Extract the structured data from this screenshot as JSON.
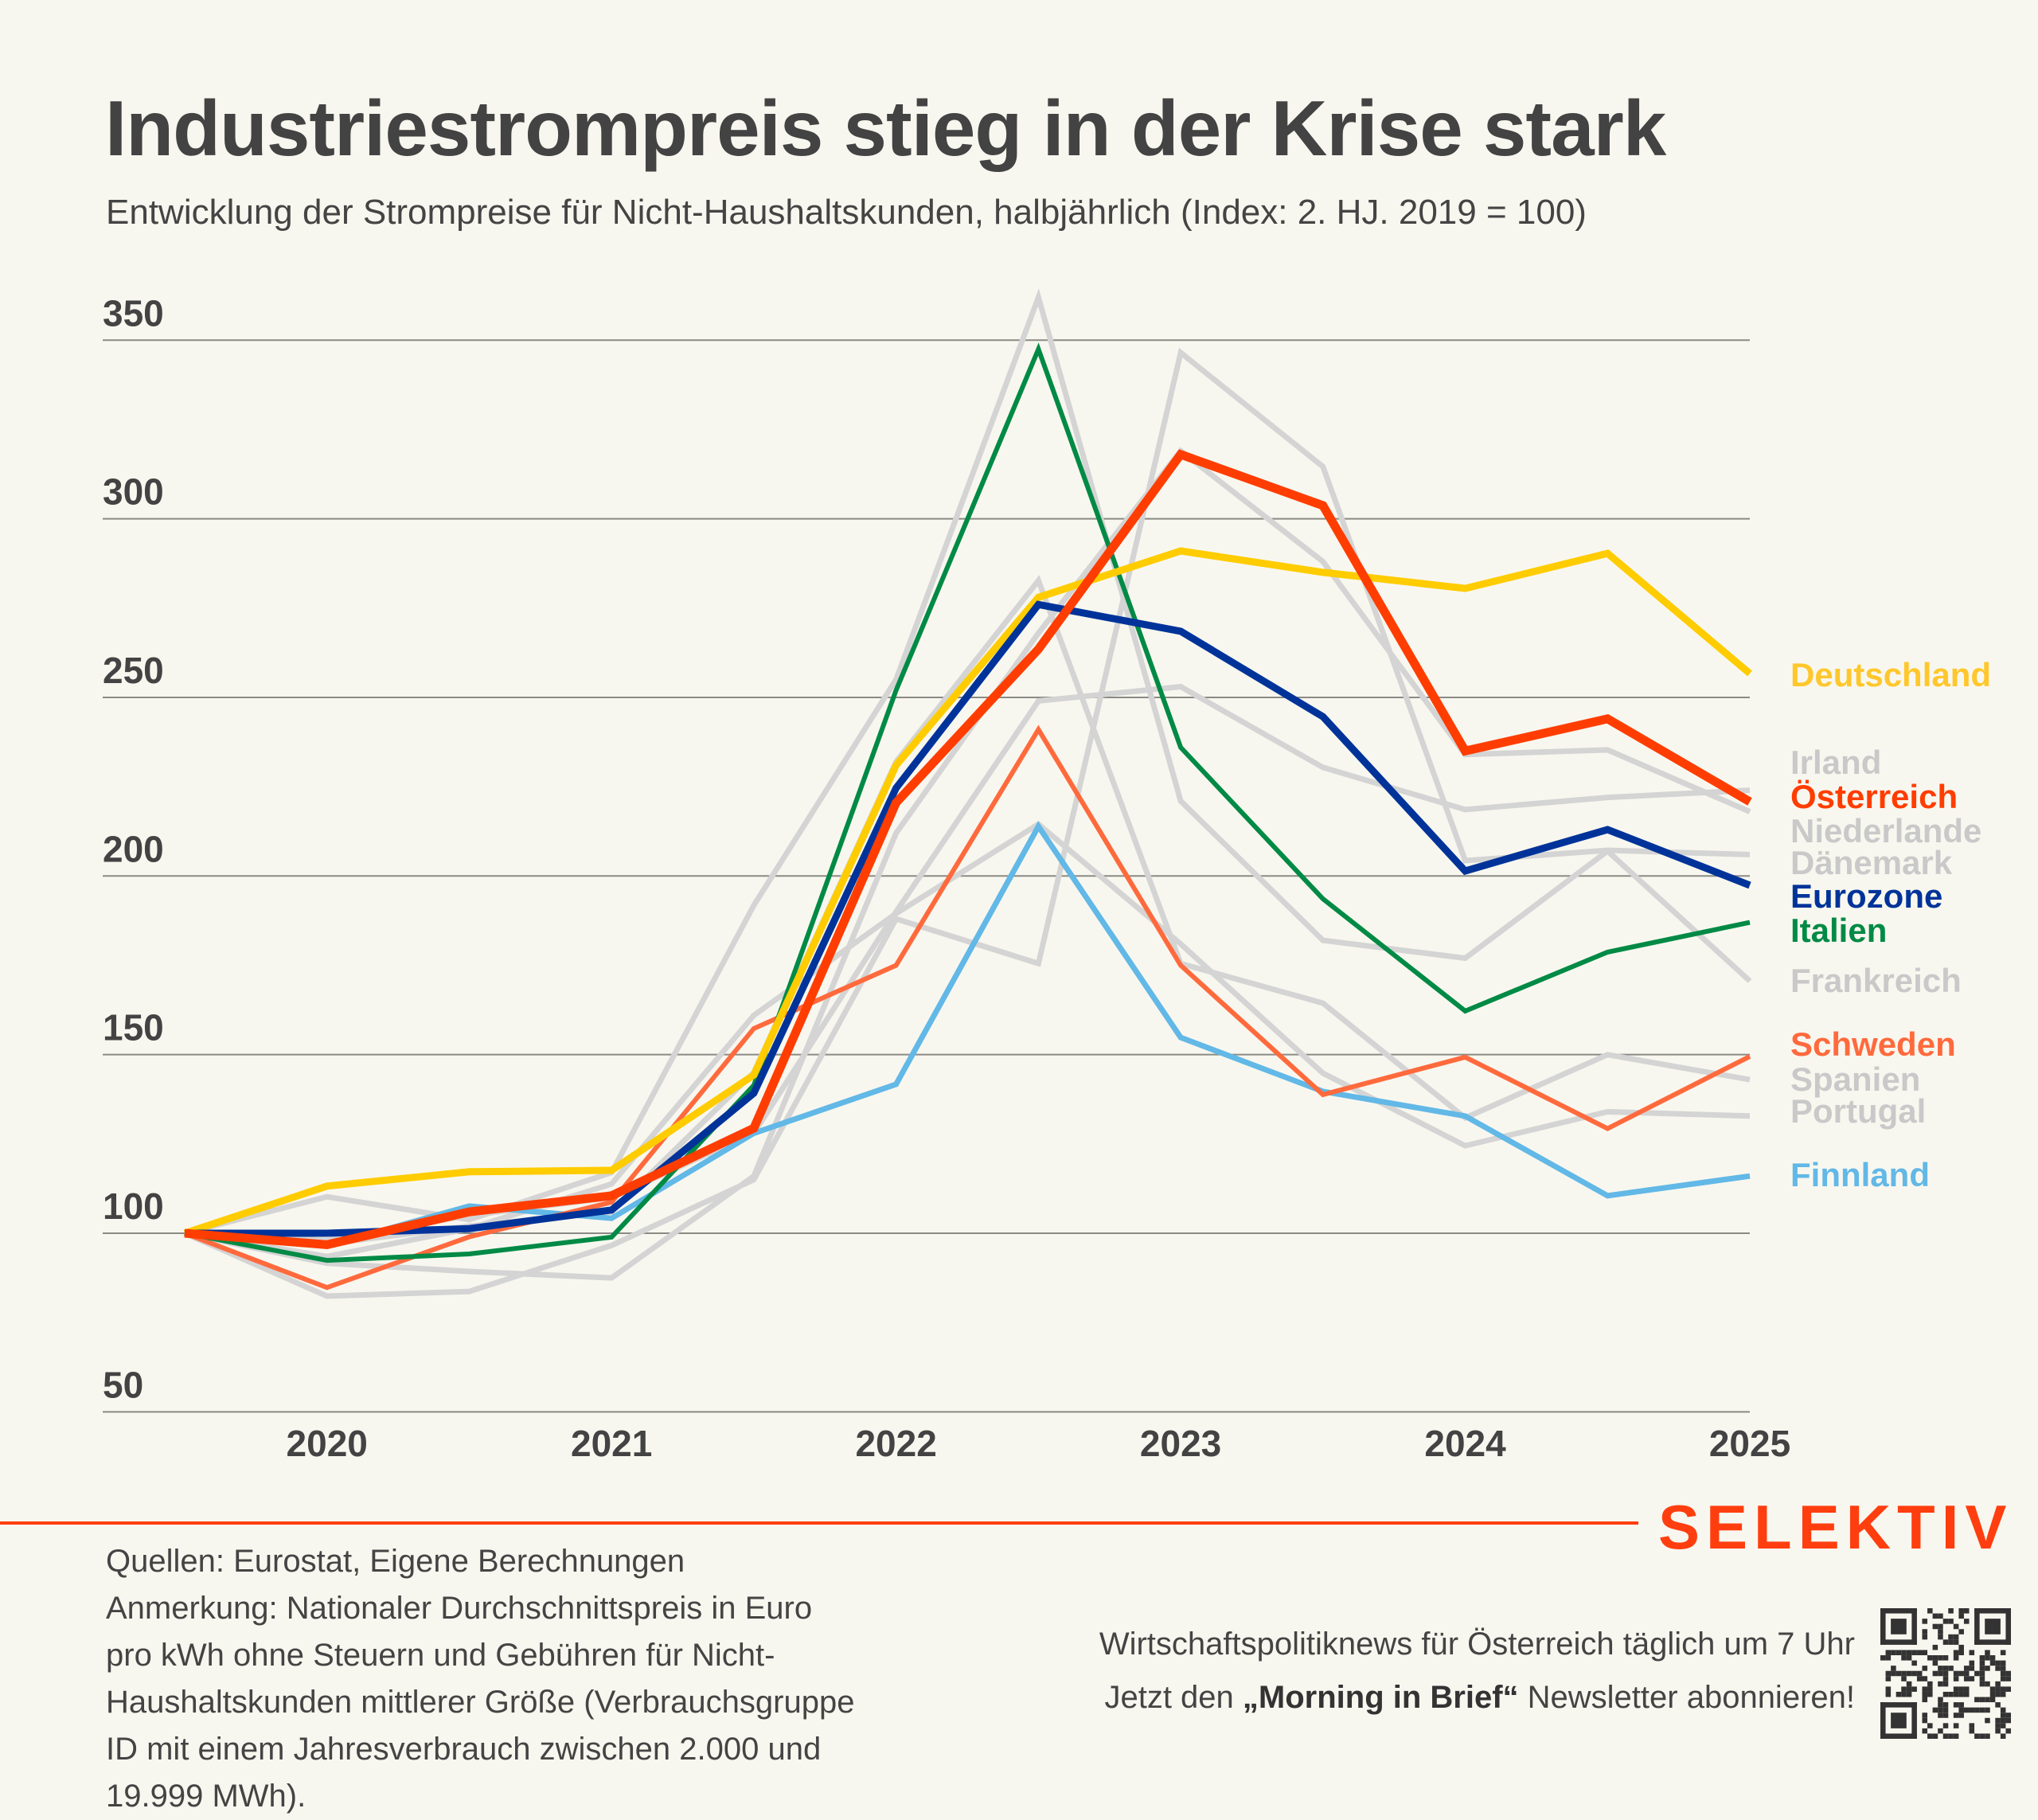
{
  "header": {
    "title": "Industriestrompreis stieg in der Krise stark",
    "subtitle": "Entwicklung der Strompreise für Nicht-Haushaltskunden, halbjährlich (Index: 2. HJ. 2019 = 100)"
  },
  "chart_data": {
    "type": "line",
    "title": "Industriestrompreis stieg in der Krise stark",
    "subtitle": "Entwicklung der Strompreise für Nicht-Haushaltskunden, halbjährlich (Index: 2. HJ. 2019 = 100)",
    "xlabel": "",
    "ylabel": "",
    "x": [
      2019.5,
      2020,
      2020.5,
      2021,
      2021.5,
      2022,
      2022.5,
      2023,
      2023.5,
      2024,
      2024.5,
      2025
    ],
    "xticks": [
      2020,
      2021,
      2022,
      2023,
      2024,
      2025
    ],
    "xtick_labels": [
      "2020",
      "2021",
      "2022",
      "2023",
      "2024",
      "2025"
    ],
    "xlim": [
      2019.5,
      2025
    ],
    "yticks": [
      50,
      100,
      150,
      200,
      250,
      300,
      350
    ],
    "ytick_labels": [
      "50",
      "100",
      "150",
      "200",
      "250",
      "300",
      "350"
    ],
    "ylim": [
      50,
      350
    ],
    "grid": "horizontal",
    "legend": "direct labels at right end of lines",
    "series": [
      {
        "name": "Frankreich",
        "color": "#d4d4d4",
        "highlight": false,
        "values": [
          100,
          110.2,
          103.8,
          117,
          191.8,
          255,
          362,
          221,
          182,
          177,
          207,
          170.6
        ]
      },
      {
        "name": "Spanien",
        "color": "#d4d4d4",
        "highlight": false,
        "values": [
          100,
          97,
          102,
          106,
          145,
          232,
          282.7,
          175.5,
          164.4,
          132.3,
          150,
          143
        ]
      },
      {
        "name": "Portugal",
        "color": "#d4d4d4",
        "highlight": false,
        "values": [
          100,
          93.5,
          101.3,
          113.8,
          161,
          189.5,
          214.5,
          181,
          144.8,
          124.5,
          134,
          132.8
        ]
      },
      {
        "name": "Dänemark",
        "color": "#d4d4d4",
        "highlight": false,
        "values": [
          100,
          82.4,
          83.7,
          96.6,
          115,
          188,
          175.5,
          346.5,
          314.6,
          204.3,
          207.2,
          206
        ]
      },
      {
        "name": "Niederlande",
        "color": "#d4d4d4",
        "highlight": false,
        "values": [
          100,
          91.6,
          89.3,
          87.5,
          116,
          212,
          268,
          319,
          288,
          234,
          235.3,
          218
        ]
      },
      {
        "name": "Irland",
        "color": "#d4d4d4",
        "highlight": false,
        "values": [
          100,
          98,
          105,
          110,
          128,
          190,
          249,
          253,
          230.4,
          218.6,
          222,
          224
        ]
      },
      {
        "name": "Finnland",
        "color": "#62b8e6",
        "highlight": true,
        "width": 7,
        "values": [
          100,
          96.5,
          107.6,
          104.2,
          128,
          141.7,
          213.9,
          154.8,
          139.7,
          132.8,
          110.5,
          116
        ]
      },
      {
        "name": "Schweden",
        "color": "#ff6a3d",
        "highlight": true,
        "width": 6,
        "values": [
          100,
          84.8,
          99,
          108.7,
          157.3,
          175,
          241,
          175,
          138.8,
          149.3,
          129.3,
          149.5
        ]
      },
      {
        "name": "Italien",
        "color": "#008a45",
        "highlight": true,
        "width": 6,
        "values": [
          100,
          92.4,
          94.2,
          98.9,
          141.4,
          252,
          347.5,
          236,
          193.6,
          162.2,
          178.7,
          187
        ]
      },
      {
        "name": "Deutschland",
        "color": "#ffcc00",
        "highlight": true,
        "width": 9,
        "values": [
          100,
          113.2,
          117.2,
          117.6,
          144.3,
          231,
          278,
          291,
          285,
          280.5,
          290.3,
          256.7
        ]
      },
      {
        "name": "Eurozone",
        "color": "#003399",
        "highlight": true,
        "width": 9,
        "values": [
          100,
          100,
          101.3,
          106.5,
          139.2,
          224.6,
          276,
          268.5,
          244.6,
          201.4,
          213,
          197.4
        ]
      },
      {
        "name": "Österreich",
        "color": "#ff3d00",
        "highlight": true,
        "width": 11,
        "values": [
          100,
          96.8,
          106,
          110.5,
          129.4,
          220.5,
          263.5,
          318,
          303.7,
          235,
          244,
          220.8
        ]
      }
    ],
    "end_labels": [
      {
        "name": "Deutschland",
        "color": "#ffc72c",
        "order": 1
      },
      {
        "name": "Irland",
        "color": "#c9c9c9",
        "order": 2
      },
      {
        "name": "Österreich",
        "color": "#ff3d00",
        "order": 3
      },
      {
        "name": "Niederlande",
        "color": "#c9c9c9",
        "order": 4
      },
      {
        "name": "Dänemark",
        "color": "#c9c9c9",
        "order": 5
      },
      {
        "name": "Eurozone",
        "color": "#003399",
        "order": 6
      },
      {
        "name": "Italien",
        "color": "#008a45",
        "order": 7
      },
      {
        "name": "Frankreich",
        "color": "#c9c9c9",
        "order": 8
      },
      {
        "name": "Schweden",
        "color": "#ff6a3d",
        "order": 9
      },
      {
        "name": "Spanien",
        "color": "#c9c9c9",
        "order": 10
      },
      {
        "name": "Portugal",
        "color": "#c9c9c9",
        "order": 11
      },
      {
        "name": "Finnland",
        "color": "#62b8e6",
        "order": 12
      }
    ]
  },
  "footer": {
    "brand": "SELEKTIV",
    "brand_color": "#ff3e0f",
    "notes": [
      "Quellen: Eurostat, Eigene Berechnungen",
      "Anmerkung: Nationaler Durchschnittspreis in Euro",
      "pro kWh ohne Steuern und Gebühren für Nicht-",
      "Haushaltskunden mittlerer Größe (Verbrauchsgruppe",
      "ID mit einem Jahresverbrauch zwischen 2.000 und",
      "19.999 MWh)."
    ],
    "promo_line1": "Wirtschaftspolitiknews für Österreich täglich um 7 Uhr",
    "promo_line2_prefix": "Jetzt den ",
    "promo_line2_bold": "„Morning in Brief“",
    "promo_line2_suffix": " Newsletter abonnieren!",
    "qr_icon": "qr-code-icon"
  }
}
